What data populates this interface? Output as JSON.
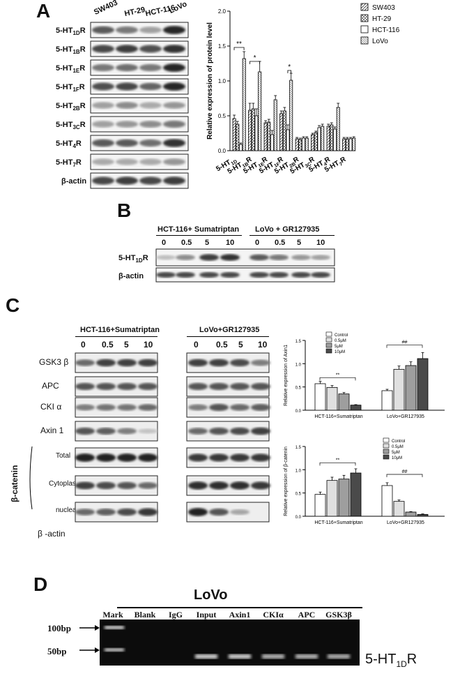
{
  "panels": {
    "a": "A",
    "b": "B",
    "c": "C",
    "d": "D"
  },
  "panelA": {
    "blot_columns": [
      "SW403",
      "HT-29",
      "HCT-116",
      "LoVo"
    ],
    "blot_rows": [
      "5-HT1DR",
      "5-HT1BR",
      "5-HT1ER",
      "5-HT1FR",
      "5-HT2BR",
      "5-HT3CR",
      "5-HT4R",
      "5-HT7R",
      "β-actin"
    ]
  },
  "panelB": {
    "group1": "HCT-116+ Sumatriptan",
    "group2": "LoVo + GR127935",
    "doses": [
      "0",
      "0.5",
      "5",
      "10",
      "0",
      "0.5",
      "5",
      "10"
    ],
    "rows": [
      "5-HT1DR",
      "β-actin"
    ]
  },
  "panelC": {
    "group1": "HCT-116+Sumatriptan",
    "group2": "LoVo+GR127935",
    "doses": [
      "0",
      "0.5",
      "5",
      "10",
      "0",
      "0.5",
      "5",
      "10"
    ],
    "rows": [
      "GSK3 β",
      "APC",
      "CKI α",
      "Axin 1",
      "Total",
      "Cytoplasmic",
      "nuclear",
      "β -actin"
    ],
    "beta_catenin": "β-catenin"
  },
  "panelD": {
    "title": "LoVo",
    "lanes": [
      "Mark",
      "Blank",
      "IgG",
      "Input",
      "Axin1",
      "CKIα",
      "APC",
      "GSK3β"
    ],
    "markers": [
      "100bp",
      "50bp"
    ],
    "product": "5-HT1DR"
  },
  "chart_data": [
    {
      "type": "bar",
      "ylabel": "Relative expression of protein level",
      "ylim": [
        0,
        2.0
      ],
      "yticks": [
        "0.0",
        "0.5",
        "1.0",
        "1.5",
        "2.0"
      ],
      "categories": [
        "5-HT1D",
        "5-HT1BR",
        "5-HT1ER",
        "5-HT1FR",
        "5-HT2BR",
        "5-HT3CR",
        "5-HT4R",
        "5-HT7R"
      ],
      "series": [
        {
          "name": "SW403",
          "values": [
            0.46,
            0.58,
            0.4,
            0.53,
            0.17,
            0.23,
            0.35,
            0.17
          ],
          "errors": [
            0.05,
            0.1,
            0.03,
            0.04,
            0.02,
            0.02,
            0.03,
            0.02
          ]
        },
        {
          "name": "HT-29",
          "values": [
            0.38,
            0.6,
            0.41,
            0.57,
            0.16,
            0.26,
            0.37,
            0.17
          ],
          "errors": [
            0.04,
            0.08,
            0.04,
            0.05,
            0.02,
            0.02,
            0.03,
            0.02
          ]
        },
        {
          "name": "HCT-116",
          "values": [
            0.09,
            0.5,
            0.23,
            0.3,
            0.18,
            0.33,
            0.31,
            0.17
          ],
          "errors": [
            0.02,
            0.1,
            0.06,
            0.07,
            0.02,
            0.03,
            0.03,
            0.02
          ]
        },
        {
          "name": "LoVo",
          "values": [
            1.32,
            1.13,
            0.73,
            1.01,
            0.18,
            0.35,
            0.62,
            0.18
          ],
          "errors": [
            0.1,
            0.15,
            0.06,
            0.1,
            0.02,
            0.03,
            0.06,
            0.02
          ]
        }
      ],
      "significance": [
        "**",
        "*",
        "*"
      ],
      "legend": "top-right"
    },
    {
      "type": "bar",
      "ylabel": "Relative expression of Axin1",
      "ylim": [
        0,
        1.5
      ],
      "yticks": [
        "0.0",
        "0.5",
        "1.0",
        "1.5"
      ],
      "categories": [
        "HCT-116+Sumatriptan",
        "LoVo+GR127935"
      ],
      "series": [
        {
          "name": "Control",
          "values": [
            0.57,
            0.42
          ],
          "errors": [
            0.05,
            0.03
          ]
        },
        {
          "name": "0.5μM",
          "values": [
            0.49,
            0.88
          ],
          "errors": [
            0.04,
            0.07
          ]
        },
        {
          "name": "5μM",
          "values": [
            0.35,
            0.96
          ],
          "errors": [
            0.03,
            0.08
          ]
        },
        {
          "name": "10μM",
          "values": [
            0.11,
            1.11
          ],
          "errors": [
            0.01,
            0.13
          ]
        }
      ],
      "significance": [
        "**",
        "##"
      ],
      "legend": "top-left"
    },
    {
      "type": "bar",
      "ylabel": "Relative expression of β-catenin",
      "ylim": [
        0,
        1.5
      ],
      "yticks": [
        "0.0",
        "0.5",
        "1.0",
        "1.5"
      ],
      "categories": [
        "HCT-116+Sumatriptan",
        "LoVo+GR127935"
      ],
      "series": [
        {
          "name": "Control",
          "values": [
            0.47,
            0.66
          ],
          "errors": [
            0.05,
            0.06
          ]
        },
        {
          "name": "0.5μM",
          "values": [
            0.77,
            0.32
          ],
          "errors": [
            0.07,
            0.03
          ]
        },
        {
          "name": "5μM",
          "values": [
            0.8,
            0.09
          ],
          "errors": [
            0.08,
            0.01
          ]
        },
        {
          "name": "10μM",
          "values": [
            0.93,
            0.04
          ],
          "errors": [
            0.09,
            0.01
          ]
        }
      ],
      "significance": [
        "**",
        "##"
      ],
      "legend": "top-right"
    }
  ]
}
